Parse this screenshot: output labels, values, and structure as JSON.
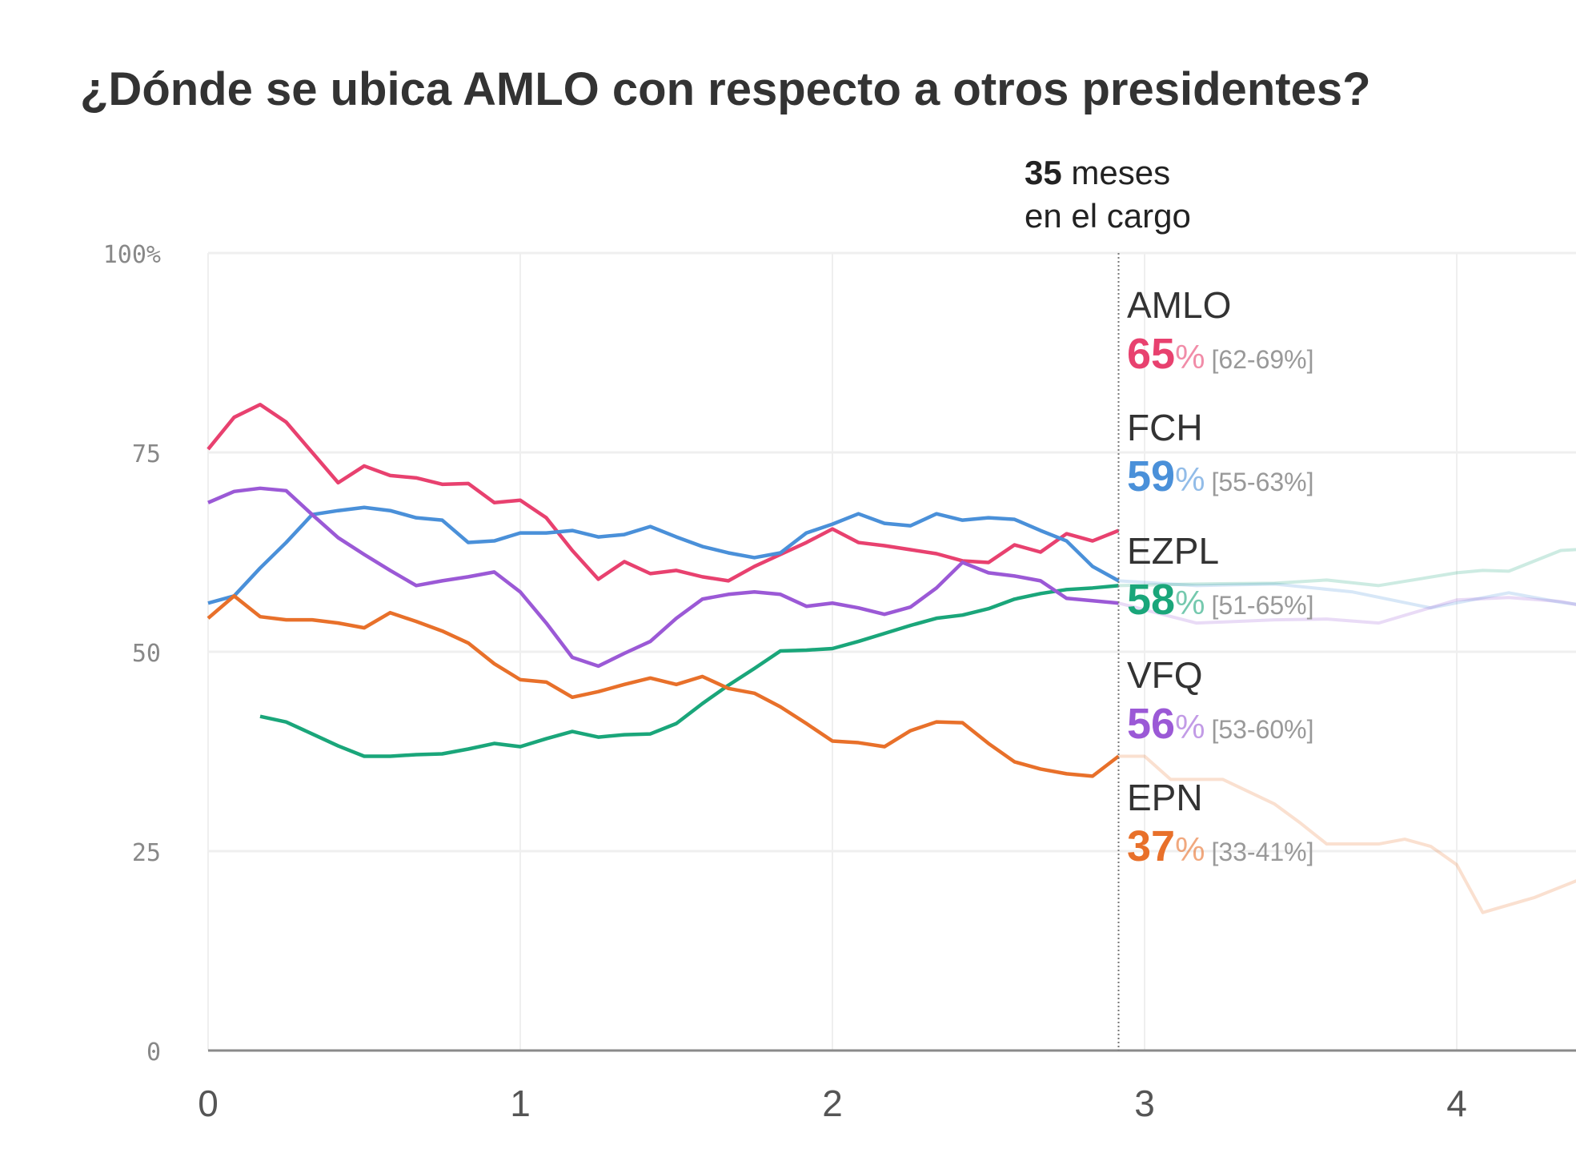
{
  "chart_data": {
    "type": "line",
    "title": "¿Dónde se ubica AMLO con respecto a otros presidentes?",
    "xlabel": "",
    "ylabel": "",
    "x_unit": "months in office (ticks shown in years)",
    "xlim_years": [
      0,
      4.38
    ],
    "ylim": [
      0,
      100
    ],
    "y_ticks": [
      "0",
      "25",
      "50",
      "75",
      "100%"
    ],
    "y_tick_values": [
      0,
      25,
      50,
      75,
      100
    ],
    "x_ticks": [
      "0",
      "1",
      "2",
      "3",
      "4"
    ],
    "x_tick_values": [
      0,
      1,
      2,
      3,
      4
    ],
    "grid": true,
    "annotation": {
      "month": 35,
      "bold": "35",
      "line1_rest": " meses",
      "line2": "en el cargo"
    },
    "series": [
      {
        "name": "AMLO",
        "color": "#e8416f",
        "start_month": 0,
        "values": [
          75.4,
          79.4,
          81,
          78.8,
          75,
          71.2,
          73.3,
          72.1,
          71.8,
          71,
          71.1,
          68.7,
          69,
          66.8,
          62.7,
          59.1,
          61.3,
          59.8,
          60.2,
          59.4,
          58.9,
          60.7,
          62.2,
          63.7,
          65.4,
          63.7,
          63.3,
          62.8,
          62.3,
          61.4,
          61.2,
          63.4,
          62.5,
          64.8,
          63.9,
          65.2
        ],
        "label_value": "65",
        "label_pct": "%",
        "label_range": "[62-69%]",
        "future": []
      },
      {
        "name": "FCH",
        "color": "#4a90d9",
        "start_month": 0,
        "values": [
          56.1,
          57,
          60.5,
          63.7,
          67.2,
          67.7,
          68.1,
          67.7,
          66.8,
          66.5,
          63.7,
          63.9,
          64.9,
          64.9,
          65.2,
          64.4,
          64.7,
          65.7,
          64.4,
          63.2,
          62.4,
          61.8,
          62.4,
          64.9,
          66,
          67.3,
          66.1,
          65.8,
          67.3,
          66.5,
          66.8,
          66.6,
          65.2,
          63.9,
          60.7,
          58.9
        ],
        "label_value": "59",
        "label_pct": "%",
        "label_range": "[55-63%]",
        "future": [
          [
            35,
            58.9
          ],
          [
            38,
            58.3
          ],
          [
            41,
            58.5
          ],
          [
            44,
            57.5
          ],
          [
            47,
            55.5
          ],
          [
            50,
            57.4
          ],
          [
            52,
            56.2
          ],
          [
            54,
            55.4
          ],
          [
            55,
            54.4
          ]
        ]
      },
      {
        "name": "EZPL",
        "color": "#1aa67a",
        "start_month": 2,
        "values": [
          41.9,
          41.2,
          39.7,
          38.2,
          36.9,
          36.9,
          37.1,
          37.2,
          37.8,
          38.5,
          38.1,
          39.1,
          40,
          39.3,
          39.6,
          39.7,
          41,
          43.5,
          45.8,
          47.9,
          50.1,
          50.2,
          50.4,
          51.3,
          52.3,
          53.3,
          54.2,
          54.6,
          55.4,
          56.6,
          57.3,
          57.8,
          58,
          58.3
        ],
        "label_value": "58",
        "label_pct": "%",
        "label_range": "[51-65%]",
        "future": [
          [
            35,
            58.3
          ],
          [
            38,
            58.5
          ],
          [
            41,
            58.6
          ],
          [
            43,
            59
          ],
          [
            45,
            58.3
          ],
          [
            48,
            59.9
          ],
          [
            49,
            60.2
          ],
          [
            50,
            60.1
          ],
          [
            52,
            62.7
          ],
          [
            55,
            63.3
          ]
        ]
      },
      {
        "name": "VFQ",
        "color": "#9b59d6",
        "start_month": 0,
        "values": [
          68.7,
          70.1,
          70.5,
          70.2,
          67.2,
          64.3,
          62.2,
          60.2,
          58.3,
          58.9,
          59.4,
          60,
          57.5,
          53.6,
          49.3,
          48.2,
          49.8,
          51.3,
          54.2,
          56.6,
          57.2,
          57.5,
          57.2,
          55.7,
          56.1,
          55.5,
          54.7,
          55.6,
          58,
          61.2,
          59.9,
          59.5,
          58.9,
          56.7,
          56.4,
          56.1
        ],
        "label_value": "56",
        "label_pct": "%",
        "label_range": "[53-60%]",
        "future": [
          [
            35,
            56.1
          ],
          [
            38,
            53.6
          ],
          [
            41,
            54
          ],
          [
            43,
            54.1
          ],
          [
            45,
            53.6
          ],
          [
            48,
            56.5
          ],
          [
            50,
            56.8
          ],
          [
            52,
            56.3
          ],
          [
            54,
            55
          ],
          [
            55,
            52
          ]
        ]
      },
      {
        "name": "EPN",
        "color": "#e8702a",
        "start_month": 0,
        "values": [
          54.2,
          57,
          54.4,
          54,
          54,
          53.6,
          53,
          54.9,
          53.8,
          52.6,
          51.1,
          48.5,
          46.5,
          46.2,
          44.3,
          45,
          45.9,
          46.7,
          45.9,
          46.9,
          45.4,
          44.8,
          43.1,
          41,
          38.8,
          38.6,
          38.1,
          40.1,
          41.2,
          41.1,
          38.5,
          36.2,
          35.3,
          34.7,
          34.4,
          36.9
        ],
        "label_value": "37",
        "label_pct": "%",
        "label_range": "[33-41%]",
        "future": [
          [
            35,
            36.9
          ],
          [
            36,
            36.9
          ],
          [
            37,
            34
          ],
          [
            39,
            34
          ],
          [
            41,
            30.9
          ],
          [
            42,
            28.5
          ],
          [
            43,
            25.9
          ],
          [
            45,
            25.9
          ],
          [
            46,
            26.5
          ],
          [
            47,
            25.6
          ],
          [
            48,
            23.3
          ],
          [
            49,
            17.3
          ],
          [
            51,
            19.2
          ],
          [
            53,
            21.8
          ]
        ]
      }
    ]
  }
}
